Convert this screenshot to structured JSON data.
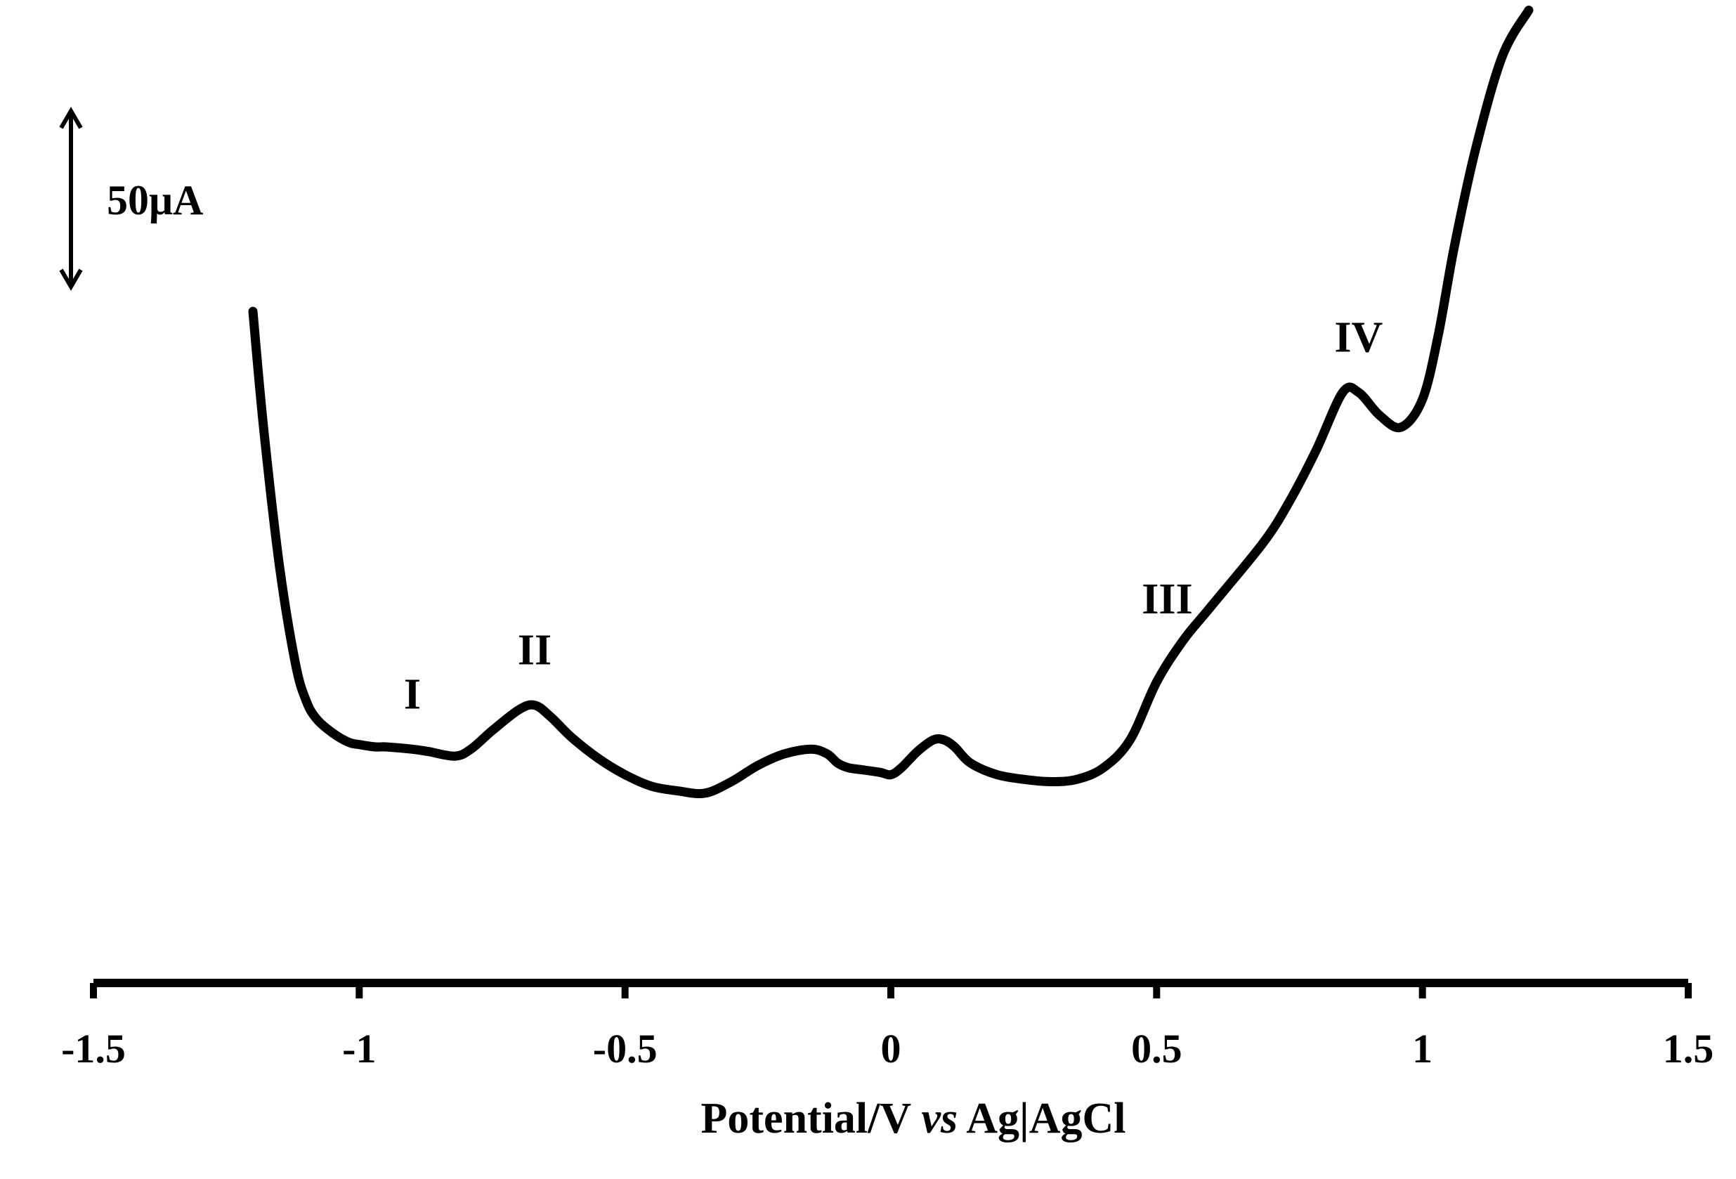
{
  "chart_data": {
    "type": "line",
    "xlabel_parts": {
      "prefix": "Potential/V ",
      "italic": "vs",
      "suffix": " Ag|AgCl"
    },
    "xlim": [
      -1.5,
      1.5
    ],
    "x_ticks": [
      -1.5,
      -1,
      -0.5,
      0,
      0.5,
      1,
      1.5
    ],
    "x_tick_labels": [
      "-1.5",
      "-1",
      "-0.5",
      "0",
      "0.5",
      "1",
      "1.5"
    ],
    "y_axis": "none",
    "y_unit": "µA",
    "ylim": [
      -35,
      315
    ],
    "scale_bar": {
      "label": "50μA",
      "value": 50
    },
    "grid": false,
    "legend": "none",
    "line_color": "#000000",
    "series": [
      {
        "x": [
          -1.2,
          -1.18,
          -1.15,
          -1.12,
          -1.1,
          -1.08,
          -1.05,
          -1.02,
          -1.0,
          -0.97,
          -0.95,
          -0.9,
          -0.87,
          -0.82,
          -0.79,
          -0.75,
          -0.7,
          -0.67,
          -0.64,
          -0.6,
          -0.55,
          -0.5,
          -0.45,
          -0.4,
          -0.35,
          -0.3,
          -0.25,
          -0.2,
          -0.15,
          -0.12,
          -0.1,
          -0.08,
          -0.05,
          -0.02,
          0.0,
          0.02,
          0.05,
          0.08,
          0.1,
          0.12,
          0.15,
          0.2,
          0.25,
          0.3,
          0.35,
          0.4,
          0.45,
          0.5,
          0.55,
          0.6,
          0.7,
          0.75,
          0.8,
          0.85,
          0.88,
          0.92,
          0.96,
          1.0,
          1.03,
          1.06,
          1.1,
          1.15,
          1.2
        ],
        "y": [
          190,
          140,
          80,
          38,
          22,
          14,
          8,
          4,
          3,
          2,
          2,
          1,
          0,
          -2,
          1,
          9,
          18,
          20,
          15,
          6,
          -3,
          -10,
          -15,
          -17,
          -18,
          -13,
          -6,
          -1,
          1,
          -1,
          -5,
          -7,
          -8,
          -9,
          -10,
          -7,
          0,
          5,
          5,
          2,
          -5,
          -10,
          -12,
          -13,
          -12,
          -7,
          5,
          30,
          48,
          62,
          90,
          108,
          130,
          155,
          155,
          145,
          140,
          152,
          180,
          218,
          260,
          300,
          320
        ]
      }
    ],
    "annotations": [
      {
        "text": "I",
        "x": -0.9,
        "y": 1
      },
      {
        "text": "II",
        "x": -0.67,
        "y": 20
      },
      {
        "text": "III",
        "x": 0.52,
        "y": 42
      },
      {
        "text": "IV",
        "x": 0.88,
        "y": 155
      }
    ]
  }
}
